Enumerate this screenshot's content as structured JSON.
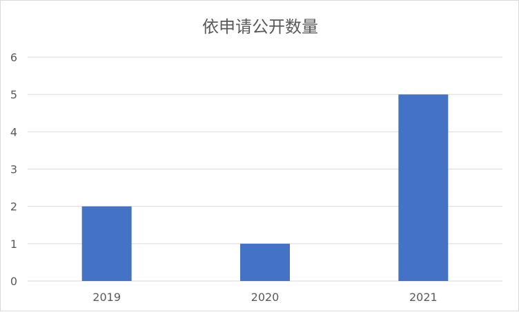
{
  "chart_data": {
    "type": "bar",
    "title": "依申请公开数量",
    "categories": [
      "2019",
      "2020",
      "2021"
    ],
    "values": [
      2,
      1,
      5
    ],
    "ylim": [
      0,
      6
    ],
    "yticks": [
      0,
      1,
      2,
      3,
      4,
      5,
      6
    ],
    "grid": true,
    "bar_color": "#4472c4",
    "xlabel": "",
    "ylabel": ""
  }
}
